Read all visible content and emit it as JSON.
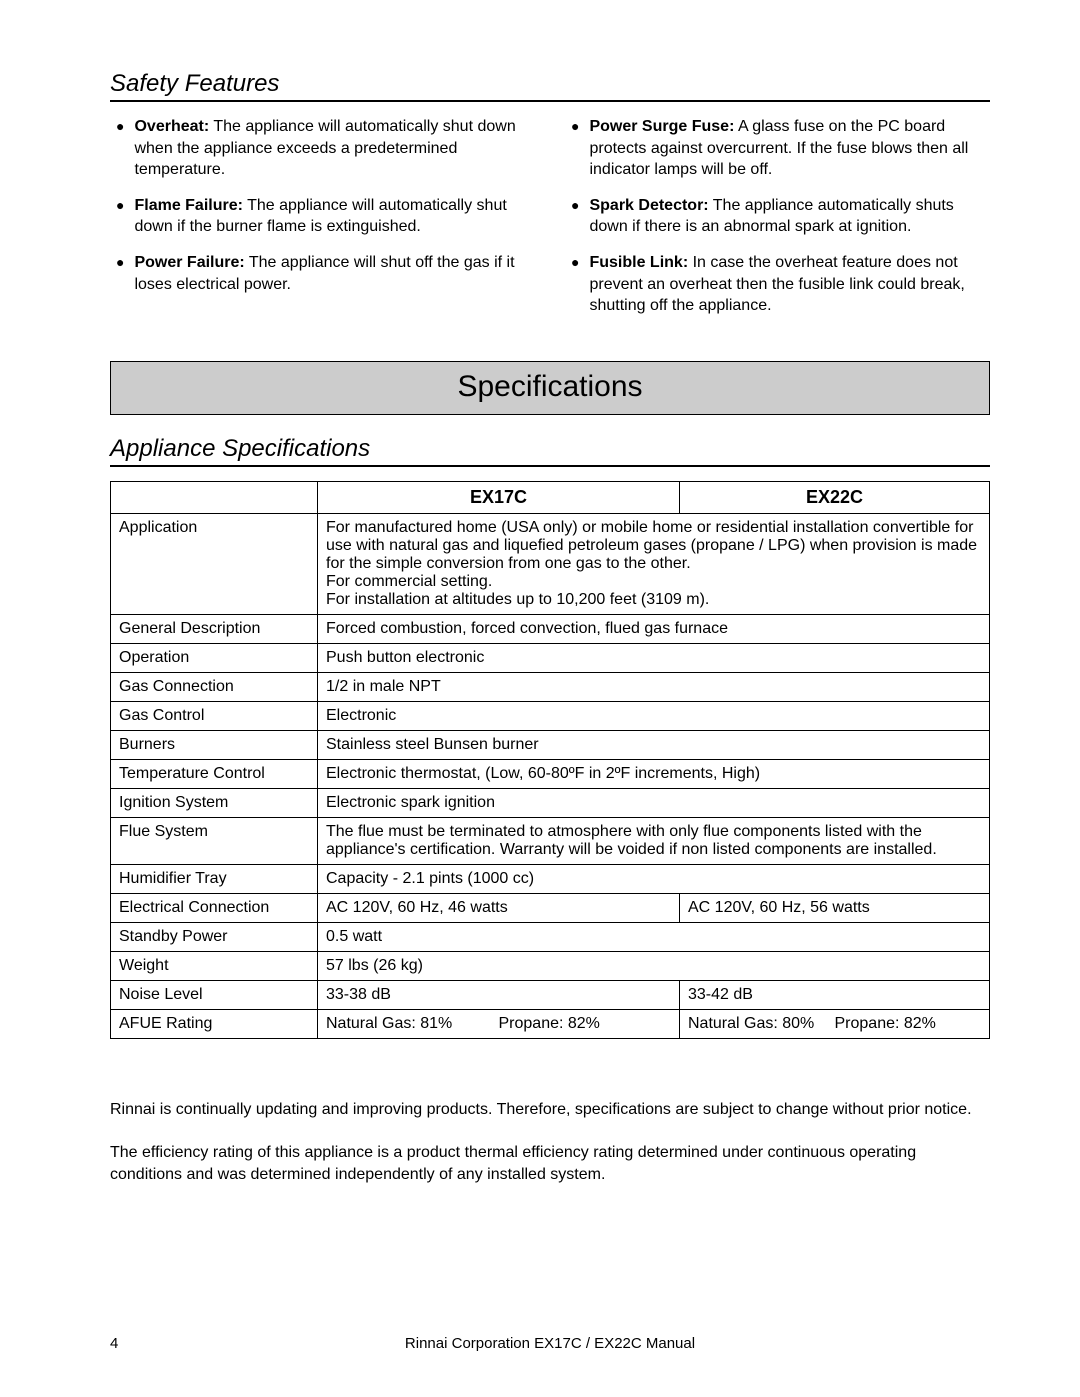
{
  "safety": {
    "heading": "Safety Features",
    "left": [
      {
        "bold": "Overheat:",
        "text": " The appliance will automatically shut down when the appliance exceeds a predetermined temperature."
      },
      {
        "bold": "Flame Failure:",
        "text": " The appliance will automatically shut down if the burner flame is extinguished."
      },
      {
        "bold": "Power Failure:",
        "text": " The appliance will shut off the gas if it loses electrical power."
      }
    ],
    "right": [
      {
        "bold": "Power Surge Fuse:",
        "text": " A glass fuse on the PC board protects against overcurrent.  If the fuse blows then all indicator lamps will be off."
      },
      {
        "bold": "Spark Detector:",
        "text": " The appliance automatically shuts down if there is an abnormal spark at ignition."
      },
      {
        "bold": "Fusible Link:",
        "text": " In case the overheat feature does not prevent an overheat then the fusible link could break, shutting off the appliance."
      }
    ]
  },
  "banner": "Specifications",
  "appliance_heading": "Appliance Specifications",
  "table": {
    "model1": "EX17C",
    "model2": "EX22C",
    "rows": [
      {
        "label": "Application",
        "span": true,
        "v": "For manufactured home (USA only) or mobile home or residential installation convertible for use with natural gas and liquefied petroleum gases (propane / LPG) when provision is made for the simple conversion from one gas to the other.\nFor commercial setting.\nFor installation at altitudes up to 10,200 feet (3109 m)."
      },
      {
        "label": "General Description",
        "span": true,
        "v": "Forced combustion, forced convection, flued gas furnace"
      },
      {
        "label": "Operation",
        "span": true,
        "v": "Push button electronic"
      },
      {
        "label": "Gas Connection",
        "span": true,
        "v": "1/2 in male NPT"
      },
      {
        "label": "Gas Control",
        "span": true,
        "v": "Electronic"
      },
      {
        "label": "Burners",
        "span": true,
        "v": "Stainless steel Bunsen burner"
      },
      {
        "label": "Temperature Control",
        "span": true,
        "v": "Electronic thermostat, (Low, 60-80ºF in 2ºF increments, High)"
      },
      {
        "label": "Ignition System",
        "span": true,
        "v": "Electronic spark ignition"
      },
      {
        "label": "Flue System",
        "span": true,
        "v": "The flue must be terminated to atmosphere with only flue components listed with the appliance's certification.  Warranty will be voided if non listed components are installed."
      },
      {
        "label": "Humidifier Tray",
        "span": true,
        "v": "Capacity - 2.1 pints (1000 cc)"
      },
      {
        "label": "Electrical Connection",
        "span": false,
        "v1": "AC 120V, 60 Hz, 46 watts",
        "v2": "AC 120V, 60 Hz, 56 watts"
      },
      {
        "label": "Standby Power",
        "span": true,
        "v": "0.5 watt"
      },
      {
        "label": "Weight",
        "span": true,
        "v": "57 lbs (26 kg)"
      },
      {
        "label": "Noise Level",
        "span": false,
        "v1": "33-38 dB",
        "v2": "33-42 dB"
      },
      {
        "label": "AFUE Rating",
        "span": false,
        "v1a": "Natural Gas: 81%",
        "v1b": "Propane: 82%",
        "v2a": "Natural Gas: 80%",
        "v2b": "Propane: 82%"
      }
    ]
  },
  "notes": {
    "p1": "Rinnai is continually updating and improving products.  Therefore, specifications are subject to change without prior notice.",
    "p2": "The efficiency rating of this appliance is a product thermal efficiency rating determined under continuous operating conditions and was determined independently of any installed system."
  },
  "footer": {
    "page": "4",
    "title": "Rinnai Corporation EX17C / EX22C Manual"
  }
}
